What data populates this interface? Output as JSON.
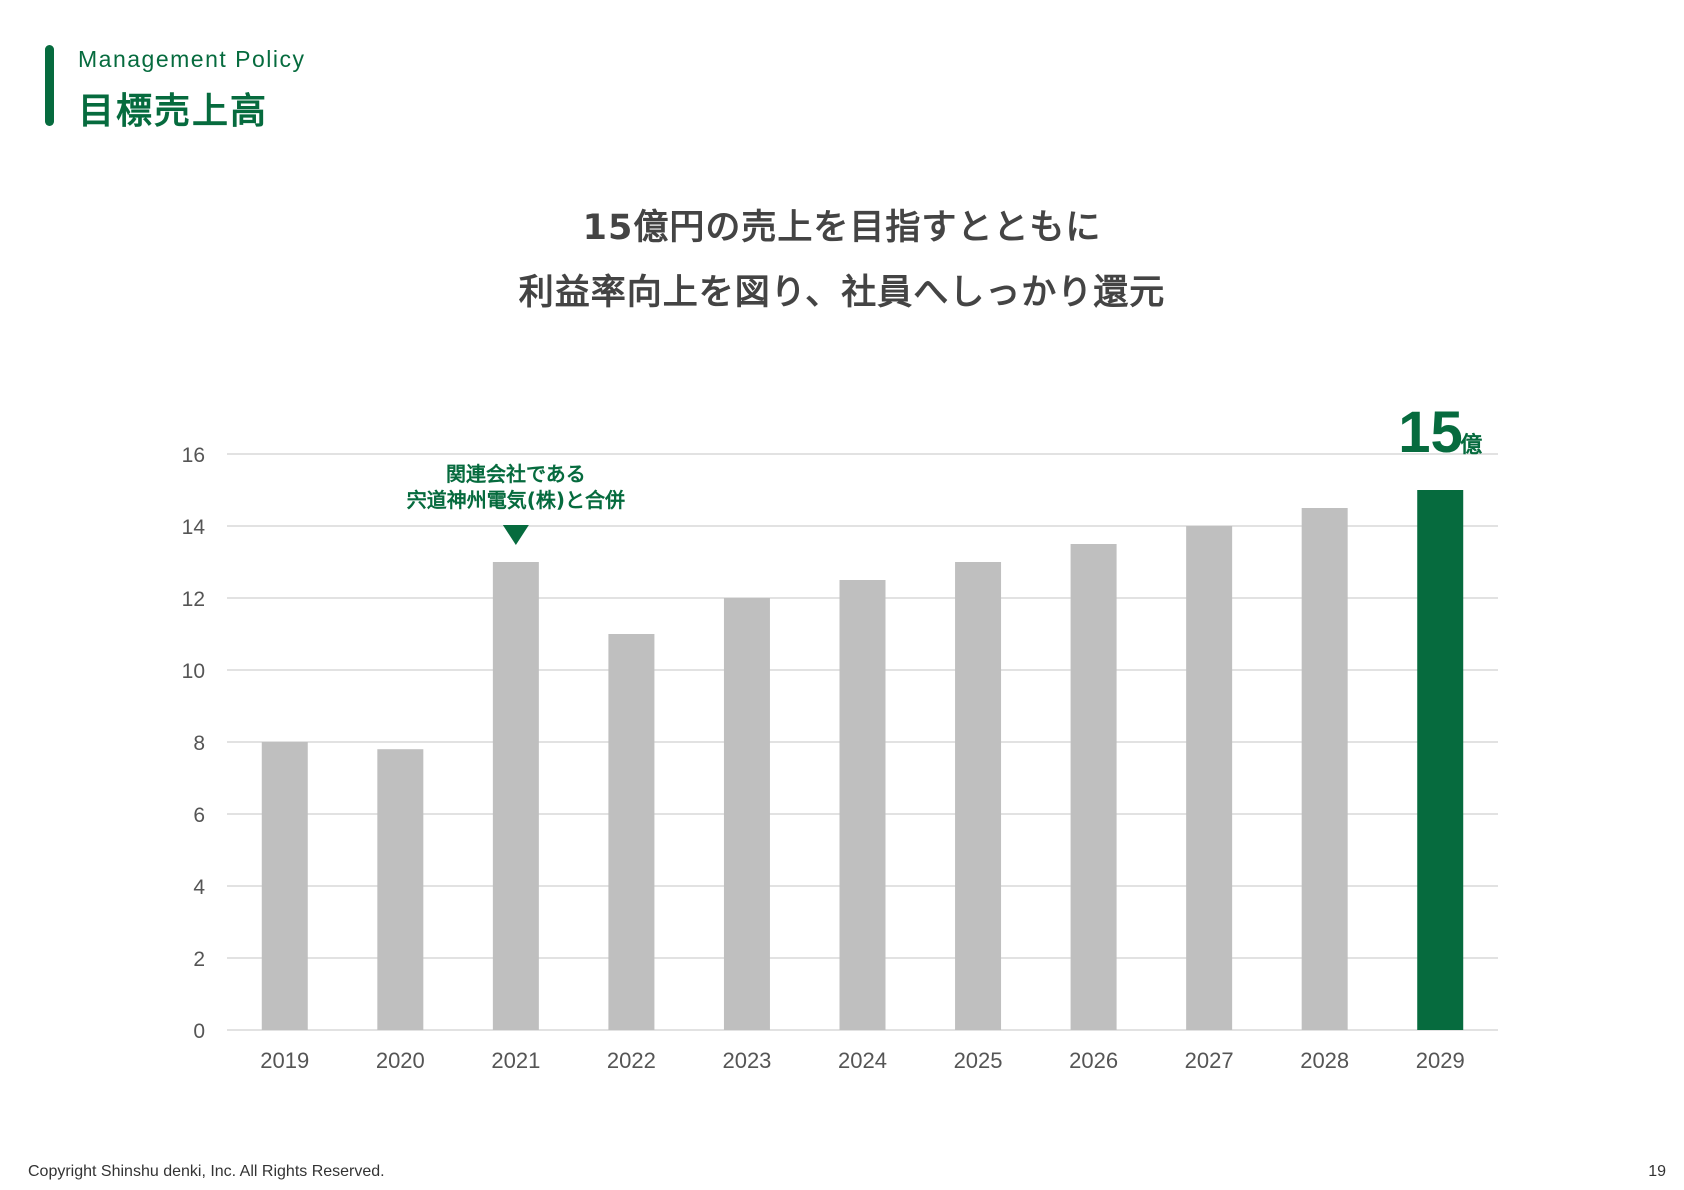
{
  "header": {
    "section_label": "Management Policy",
    "title": "目標売上高"
  },
  "headline": {
    "line1": "15億円の売上を目指すとともに",
    "line2": "利益率向上を図り、社員へしっかり還元"
  },
  "colors": {
    "accent": "#066b3e",
    "bar": "#bfbfbf",
    "grid": "#d9d9d9",
    "text": "#444444"
  },
  "chart_data": {
    "type": "bar",
    "categories": [
      "2019",
      "2020",
      "2021",
      "2022",
      "2023",
      "2024",
      "2025",
      "2026",
      "2027",
      "2028",
      "2029"
    ],
    "values": [
      8,
      7.8,
      13,
      11,
      12,
      12.5,
      13,
      13.5,
      14,
      14.5,
      15
    ],
    "highlight_index": 10,
    "ylim": [
      0,
      16
    ],
    "yticks": [
      0,
      2,
      4,
      6,
      8,
      10,
      12,
      14,
      16
    ],
    "grid": true,
    "title": "",
    "xlabel": "",
    "ylabel": "",
    "annotation": {
      "index": 2,
      "line1": "関連会社である",
      "line2": "宍道神州電気(株)と合併"
    },
    "highlight_label": {
      "value": "15",
      "unit": "億"
    }
  },
  "footer": {
    "copyright": "Copyright Shinshu denki, Inc. All Rights Reserved.",
    "page_number": "19"
  }
}
